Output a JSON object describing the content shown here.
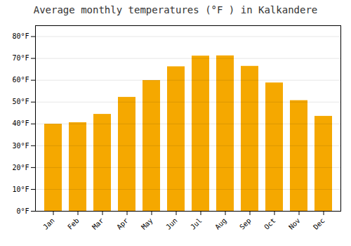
{
  "chart_data": {
    "type": "bar",
    "title": "Average monthly temperatures (°F ) in Kalkandere",
    "categories": [
      "Jan",
      "Feb",
      "Mar",
      "Apr",
      "May",
      "Jun",
      "Jul",
      "Aug",
      "Sep",
      "Oct",
      "Nov",
      "Dec"
    ],
    "values": [
      39.9,
      40.6,
      44.4,
      52.2,
      59.9,
      66.2,
      71.1,
      71.2,
      66.4,
      58.8,
      50.7,
      43.5
    ],
    "color": "#F5A800",
    "ylim": [
      0,
      85
    ],
    "yticks": [
      {
        "value": 0,
        "label": "0°F"
      },
      {
        "value": 10,
        "label": "10°F"
      },
      {
        "value": 20,
        "label": "20°F"
      },
      {
        "value": 30,
        "label": "30°F"
      },
      {
        "value": 40,
        "label": "40°F"
      },
      {
        "value": 50,
        "label": "50°F"
      },
      {
        "value": 60,
        "label": "60°F"
      },
      {
        "value": 70,
        "label": "70°F"
      },
      {
        "value": 80,
        "label": "80°F"
      }
    ],
    "grid": true
  }
}
